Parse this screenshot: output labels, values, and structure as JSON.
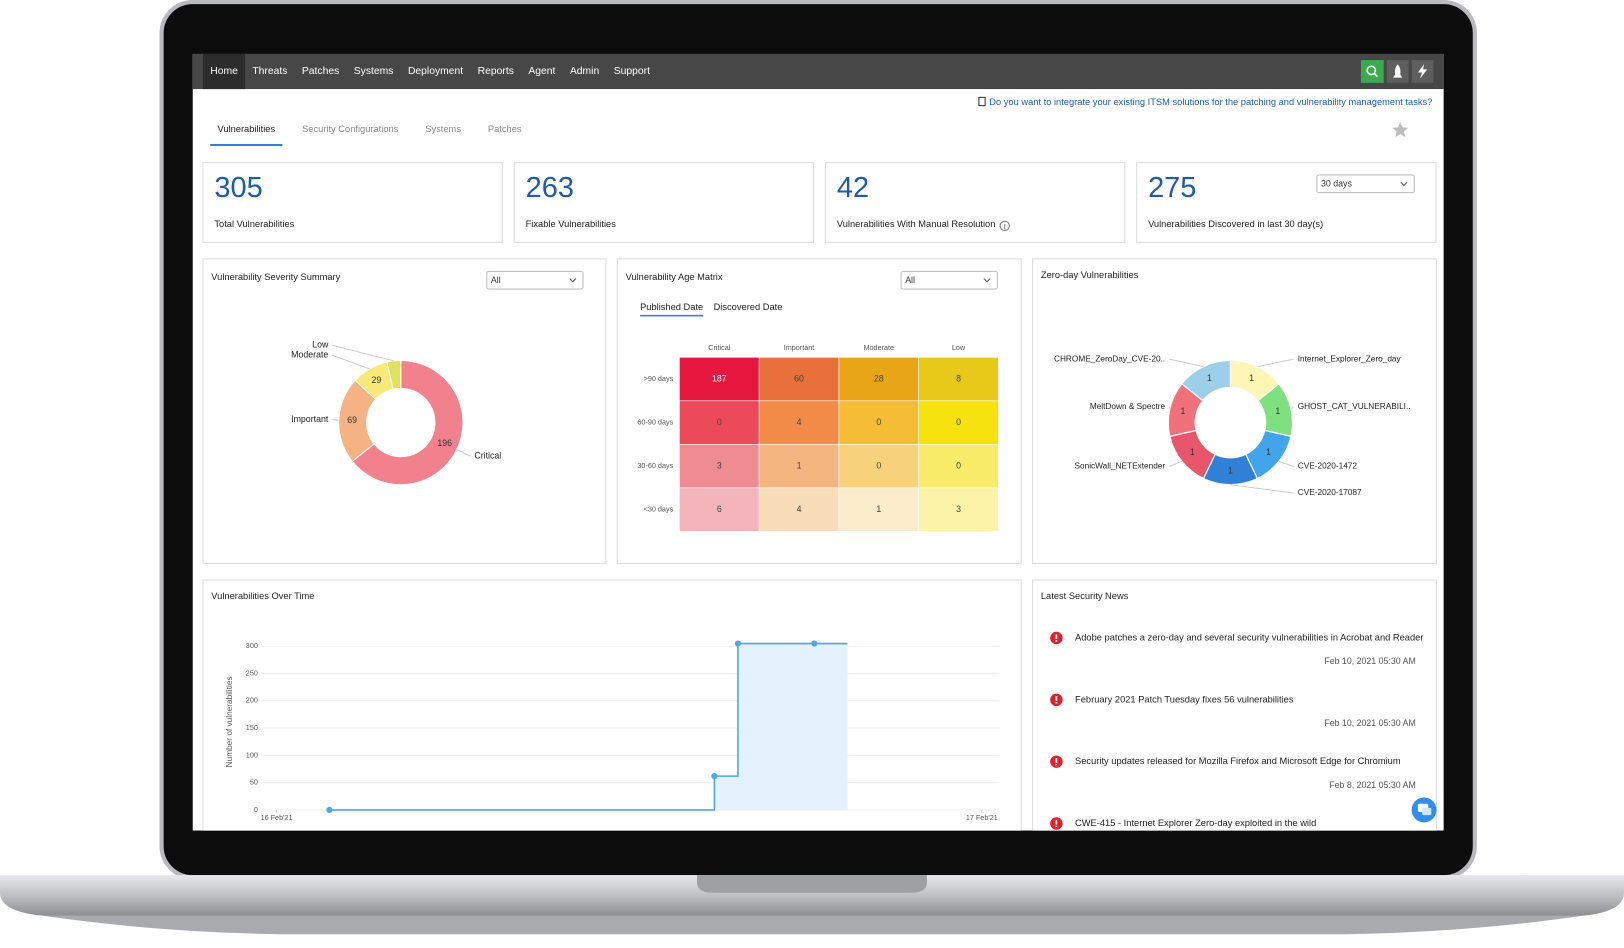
{
  "nav": [
    "Home",
    "Threats",
    "Patches",
    "Systems",
    "Deployment",
    "Reports",
    "Agent",
    "Admin",
    "Support"
  ],
  "banner": "Do you want to integrate your existing ITSM solutions for the patching and vulnerability management tasks?",
  "tabs": [
    "Vulnerabilities",
    "Security Configurations",
    "Systems",
    "Patches"
  ],
  "cards": [
    {
      "value": 305,
      "label": "Total Vulnerabilities"
    },
    {
      "value": 263,
      "label": "Fixable Vulnerabilities"
    },
    {
      "value": 42,
      "label": "Vulnerabilities With Manual Resolution"
    },
    {
      "value": 275,
      "label": "Vulnerabilities Discovered in last 30 day(s)",
      "select": "30 days"
    }
  ],
  "severity": {
    "type": "donut",
    "title": "Vulnerability Severity Summary",
    "filter": "All",
    "segments": [
      {
        "name": "Critical",
        "value": 196,
        "color": "#f0818d"
      },
      {
        "name": "Important",
        "value": 69,
        "color": "#f5b383"
      },
      {
        "name": "Moderate",
        "value": 29,
        "color": "#f7ea78"
      },
      {
        "name": "Low",
        "value": 11,
        "color": "#dfe25a"
      }
    ]
  },
  "age_matrix": {
    "type": "heatmap",
    "title": "Vulnerability Age Matrix",
    "filter": "All",
    "date_tabs": [
      "Published Date",
      "Discovered Date"
    ],
    "columns": [
      "Critical",
      "Important",
      "Moderate",
      "Low"
    ],
    "rows": [
      ">90 days",
      "60-90 days",
      "30-60 days",
      "<30 days"
    ],
    "values": [
      [
        187,
        60,
        28,
        8
      ],
      [
        0,
        4,
        0,
        0
      ],
      [
        3,
        1,
        0,
        0
      ],
      [
        6,
        4,
        1,
        3
      ]
    ],
    "colors": [
      [
        "#e5173f",
        "#e8703a",
        "#e8a617",
        "#e8c91a"
      ],
      [
        "#ea4a5a",
        "#f28c48",
        "#f5bc35",
        "#f5e20f"
      ],
      [
        "#ee8b93",
        "#f5b580",
        "#f8d27a",
        "#f8ec6a"
      ],
      [
        "#f4b5ba",
        "#f9dcb8",
        "#fbeccc",
        "#fbf4a8"
      ]
    ]
  },
  "zero_day": {
    "type": "donut",
    "title": "Zero-day Vulnerabilities",
    "segments": [
      {
        "name": "Internet_Explorer_Zero_day",
        "value": 1,
        "color": "#fdf6b4"
      },
      {
        "name": "GHOST_CAT_VULNERABILI..",
        "value": 1,
        "color": "#7fe07f"
      },
      {
        "name": "CVE-2020-1472",
        "value": 1,
        "color": "#42a5ec"
      },
      {
        "name": "CVE-2020-17087",
        "value": 1,
        "color": "#2f80d6"
      },
      {
        "name": "SonicWall_NETExtender",
        "value": 1,
        "color": "#e8566b"
      },
      {
        "name": "MeltDown & Spectre",
        "value": 1,
        "color": "#f0707c"
      },
      {
        "name": "CHROME_ZeroDay_CVE-20..",
        "value": 1,
        "color": "#9ecfe8"
      }
    ]
  },
  "over_time": {
    "type": "line",
    "title": "Vulnerabilities Over Time",
    "y_label": "Number of vulnerabilities",
    "x": [
      1.8,
      14.9,
      15.7,
      18.3
    ],
    "values": [
      0,
      62,
      305,
      305
    ],
    "color": "#4aa8e8",
    "xlim": [
      -0.6,
      24.6
    ],
    "xticks": [
      {
        "value": 0,
        "label": "16 Feb'21"
      },
      {
        "value": 24,
        "label": "17 Feb'21"
      }
    ],
    "ylim": [
      0,
      300
    ],
    "yticks": [
      0,
      50,
      100,
      150,
      200,
      250,
      300
    ],
    "grid": true
  },
  "news": {
    "title": "Latest Security News",
    "items": [
      {
        "title": "Adobe patches a zero-day and several security vulnerabilities in Acrobat and Reader",
        "date": "Feb 10, 2021 05:30 AM"
      },
      {
        "title": "February 2021 Patch Tuesday fixes 56 vulnerabilities",
        "date": "Feb 10, 2021 05:30 AM"
      },
      {
        "title": "Security updates released for Mozilla Firefox and Microsoft Edge for Chromium",
        "date": "Feb 8, 2021 05:30 AM"
      },
      {
        "title": "CWE-415 - Internet Explorer Zero-day exploited in the wild"
      }
    ]
  }
}
